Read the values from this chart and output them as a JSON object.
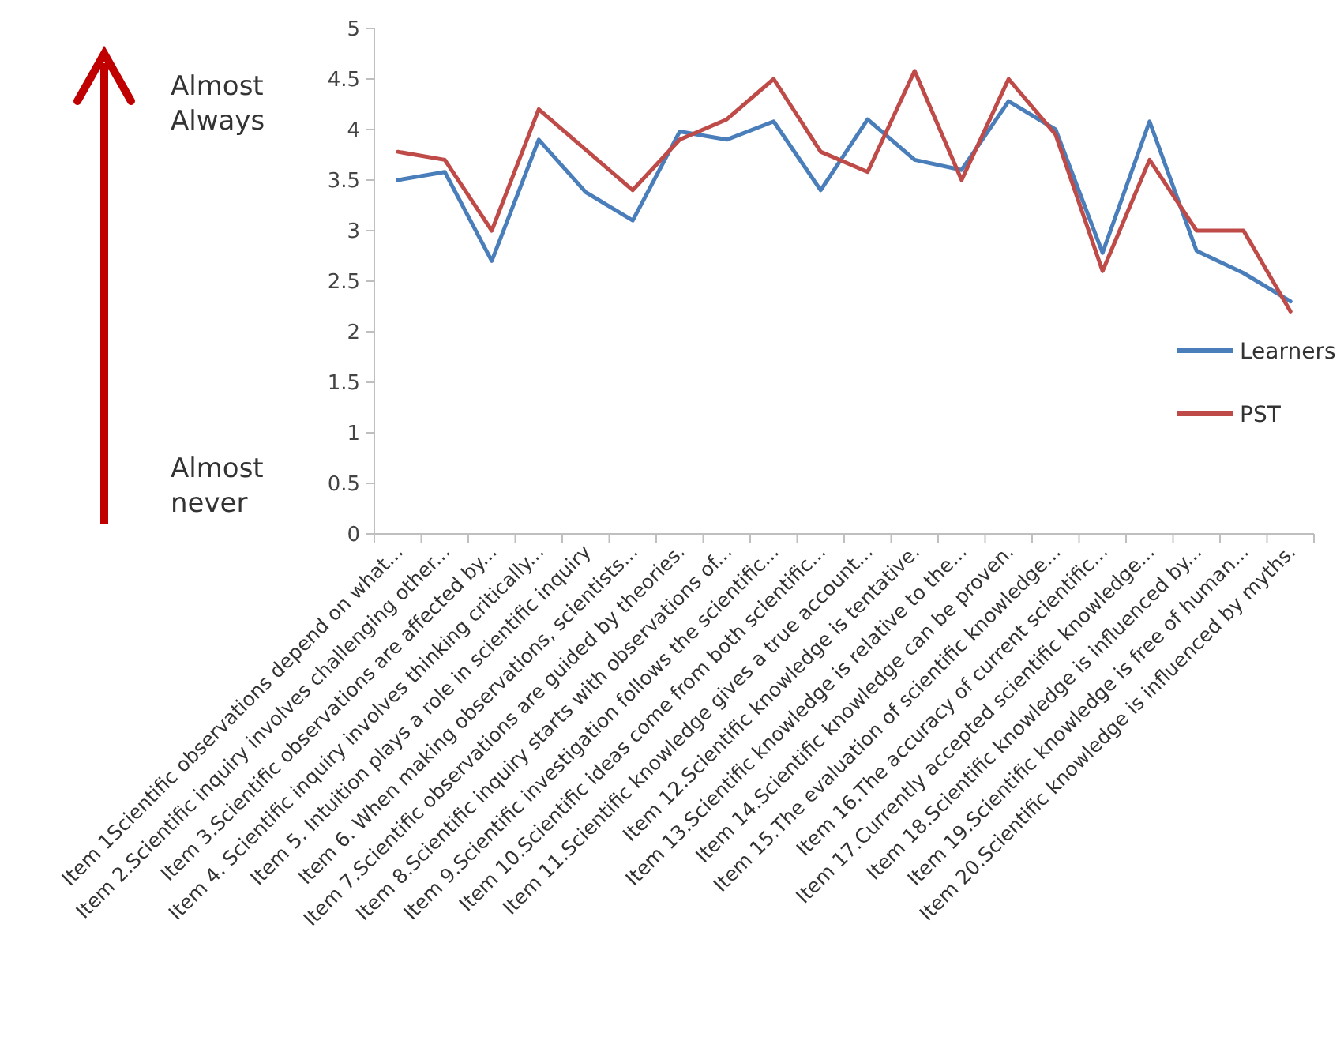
{
  "chart_data": {
    "type": "line",
    "categories": [
      "Item 1Scientific observations depend on what...",
      "Item 2.Scientific inquiry involves challenging other...",
      "Item 3.Scientific observations are affected by...",
      "Item 4. Scientific inquiry involves thinking critically...",
      "Item 5. Intuition plays a role in scientific inquiry",
      "Item 6. When making observations, scientists...",
      "Item 7.Scientific observations are guided by theories.",
      "Item 8.Scientific inquiry starts with observations of...",
      "Item 9.Scientific investigation follows the scientific...",
      "Item 10.Scientific ideas come from both scientific...",
      "Item 11.Scientific knowledge gives a true account...",
      "Item 12.Scientific knowledge is tentative.",
      "Item 13.Scientific knowledge is relative to the...",
      "Item 14.Scientific knowledge can be proven.",
      "Item 15.The evaluation of scientific knowledge...",
      "Item 16.The accuracy of current scientific...",
      "Item 17.Currently accepted scientific knowledge...",
      "Item 18.Scientific knowledge is influenced by...",
      "Item 19.Scientific knowledge is free of human...",
      "Item 20.Scientific knowledge is influenced by myths."
    ],
    "series": [
      {
        "name": "Learners",
        "color": "#4a7ebb",
        "values": [
          3.5,
          3.58,
          2.7,
          3.9,
          3.38,
          3.1,
          3.98,
          3.9,
          4.08,
          3.4,
          4.1,
          3.7,
          3.6,
          4.28,
          4.0,
          2.78,
          4.08,
          2.8,
          2.58,
          2.3
        ]
      },
      {
        "name": "PST",
        "color": "#be4b48",
        "values": [
          3.78,
          3.7,
          3.0,
          4.2,
          3.8,
          3.4,
          3.9,
          4.1,
          4.5,
          3.78,
          3.58,
          4.58,
          3.5,
          4.5,
          3.95,
          2.6,
          3.7,
          3.0,
          3.0,
          2.2
        ]
      }
    ],
    "ylim": [
      0,
      5
    ],
    "yticks": [
      0,
      0.5,
      1,
      1.5,
      2,
      2.5,
      3,
      3.5,
      4,
      4.5,
      5
    ],
    "legend": "right",
    "grid": false,
    "marker": "none",
    "line_style": "solid",
    "annotations": [
      "Almost\nAlways",
      "Almost\nnever"
    ]
  }
}
